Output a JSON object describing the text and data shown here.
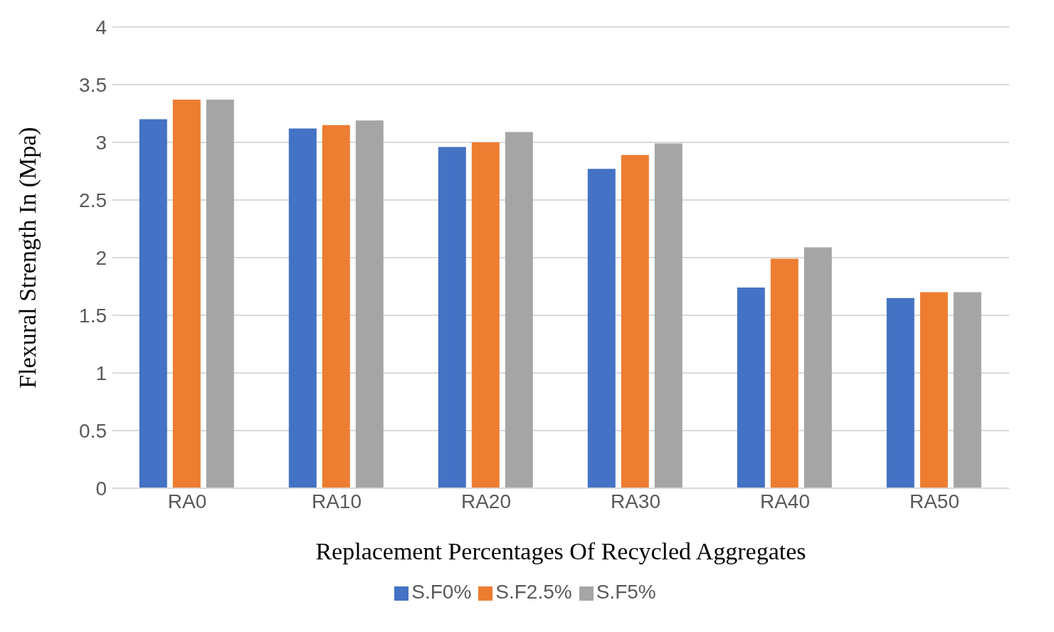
{
  "chart_data": {
    "type": "bar",
    "xlabel": "Replacement Percentages Of Recycled Aggregates",
    "ylabel": "Flexural Strength In (Mpa)",
    "categories": [
      "RA0",
      "RA10",
      "RA20",
      "RA30",
      "RA40",
      "RA50"
    ],
    "series": [
      {
        "name": "S.F0%",
        "color": "#4472c4",
        "values": [
          3.2,
          3.12,
          2.96,
          2.77,
          1.74,
          1.65
        ]
      },
      {
        "name": "S.F2.5%",
        "color": "#ed7d31",
        "values": [
          3.37,
          3.15,
          3.0,
          2.89,
          1.99,
          1.7
        ]
      },
      {
        "name": "S.F5%",
        "color": "#a5a5a5",
        "values": [
          3.37,
          3.19,
          3.09,
          2.99,
          2.09,
          1.7
        ]
      }
    ],
    "ylim": [
      0,
      4
    ],
    "yticks": [
      0,
      0.5,
      1,
      1.5,
      2,
      2.5,
      3,
      3.5,
      4
    ],
    "grid": "y",
    "legend": "bottom"
  }
}
